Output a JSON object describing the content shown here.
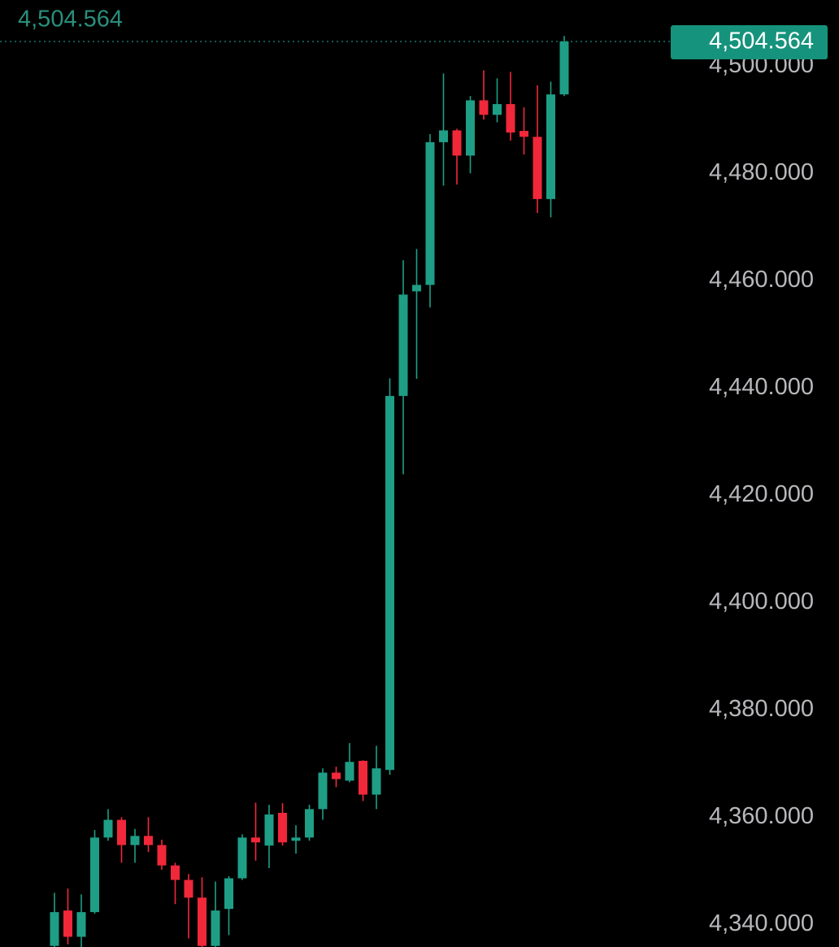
{
  "chart_data": {
    "type": "candlestick",
    "open": [
      4336,
      4342.6,
      4337.7,
      4342.3,
      4356.2,
      4359.5,
      4354.8,
      4356.5,
      4354.8,
      4351.0,
      4348.3,
      4345.0,
      4336,
      4342.9,
      4348.6,
      4356.2,
      4354.7,
      4360.8,
      4355.6,
      4356.2,
      4361.5,
      4368.3,
      4366.8,
      4370.5,
      4364.2,
      4368.8,
      4438.5,
      4458.0,
      4459.2,
      4485.8,
      4488.0,
      4483.3,
      4493.6,
      4490.9,
      4492.9,
      4487.9,
      4486.8,
      4475.2,
      4494.7
    ],
    "high": [
      4345.9,
      4346.7,
      4345.6,
      4357.6,
      4361.5,
      4360.0,
      4357.8,
      4360.0,
      4355.8,
      4351.5,
      4349.4,
      4348.8,
      4348.0,
      4349.0,
      4356.8,
      4362.7,
      4362.3,
      4362.6,
      4358.5,
      4362.3,
      4369.1,
      4369.4,
      4373.8,
      4370.6,
      4373.3,
      4441.8,
      4463.8,
      4465.9,
      4487.3,
      4498.6,
      4488.3,
      4494.4,
      4499.2,
      4497.7,
      4498.9,
      4492.3,
      4496.4,
      4497.1,
      4505.6
    ],
    "low": [
      4334,
      4336.3,
      4335.5,
      4342.0,
      4355.6,
      4351.5,
      4351.5,
      4353.5,
      4350.2,
      4343.8,
      4337.4,
      4335,
      4335,
      4338,
      4348.3,
      4351.9,
      4350.5,
      4354.7,
      4353.2,
      4355.6,
      4359.5,
      4365.6,
      4366.5,
      4363.0,
      4361.5,
      4367.9,
      4423.9,
      4441.7,
      4455.0,
      4477.7,
      4477.9,
      4480.0,
      4490.0,
      4489.5,
      4486.1,
      4483.5,
      4472.6,
      4471.8,
      4494.4
    ],
    "close": [
      4342.3,
      4337.7,
      4342.3,
      4356.2,
      4359.5,
      4354.8,
      4356.5,
      4354.8,
      4351.0,
      4348.3,
      4345.0,
      4336,
      4342.6,
      4348.6,
      4356.2,
      4355.3,
      4360.5,
      4355.3,
      4356.2,
      4361.5,
      4368.3,
      4367.1,
      4370.3,
      4364.2,
      4369.1,
      4438.5,
      4457.4,
      4459.2,
      4485.8,
      4488.0,
      4483.3,
      4493.6,
      4490.9,
      4492.9,
      4487.6,
      4486.8,
      4475.2,
      4494.7,
      4504.564
    ],
    "up_color": "#1f9e86",
    "down_color": "#f0283a",
    "ylim": [
      4335.8,
      4512.3
    ],
    "yticks": [
      {
        "value": 4340,
        "label": "4,340.000"
      },
      {
        "value": 4360,
        "label": "4,360.000"
      },
      {
        "value": 4380,
        "label": "4,380.000"
      },
      {
        "value": 4400,
        "label": "4,400.000"
      },
      {
        "value": 4420,
        "label": "4,420.000"
      },
      {
        "value": 4440,
        "label": "4,440.000"
      },
      {
        "value": 4460,
        "label": "4,460.000"
      },
      {
        "value": 4480,
        "label": "4,480.000"
      },
      {
        "value": 4500,
        "label": "4,500.000"
      }
    ],
    "last_price": {
      "value": 4504.564,
      "label": "4,504.564"
    }
  }
}
